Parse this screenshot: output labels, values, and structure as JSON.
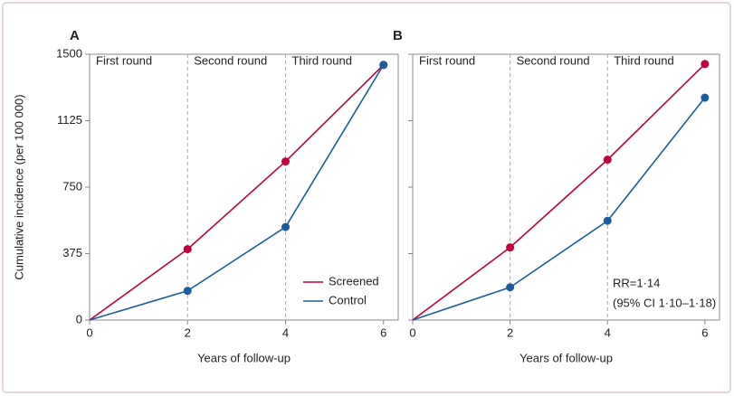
{
  "chart_data": [
    {
      "type": "line",
      "panel": "A",
      "x": [
        0,
        2,
        4,
        6
      ],
      "xlim": [
        0,
        6.3
      ],
      "xticks": [
        0,
        2,
        4,
        6
      ],
      "ylim": [
        0,
        1500
      ],
      "yticks": [
        0,
        375,
        750,
        1125,
        1500
      ],
      "xlabel": "Years of follow-up",
      "ylabel": "Cumulative incidence (per 100 000)",
      "rounds": [
        "First round",
        "Second round",
        "Third round"
      ],
      "round_boundaries": [
        2,
        4
      ],
      "legend": "bottom-right",
      "series": [
        {
          "name": "Screened",
          "color": "#c1003d",
          "values": [
            0,
            400,
            895,
            1440
          ]
        },
        {
          "name": "Control",
          "color": "#1b5e9e",
          "values": [
            0,
            165,
            525,
            1440
          ]
        }
      ]
    },
    {
      "type": "line",
      "panel": "B",
      "x": [
        0,
        2,
        4,
        6
      ],
      "xlim": [
        0,
        6.3
      ],
      "xticks": [
        0,
        2,
        4,
        6
      ],
      "ylim": [
        0,
        1500
      ],
      "xlabel": "Years of follow-up",
      "rounds": [
        "First round",
        "Second round",
        "Third round"
      ],
      "round_boundaries": [
        2,
        4
      ],
      "annotations": [
        "RR=1·14",
        "(95% CI 1·10–1·18)"
      ],
      "series": [
        {
          "color": "#c1003d",
          "values": [
            0,
            410,
            905,
            1445
          ]
        },
        {
          "color": "#1b5e9e",
          "values": [
            0,
            185,
            560,
            1255
          ]
        }
      ]
    }
  ]
}
